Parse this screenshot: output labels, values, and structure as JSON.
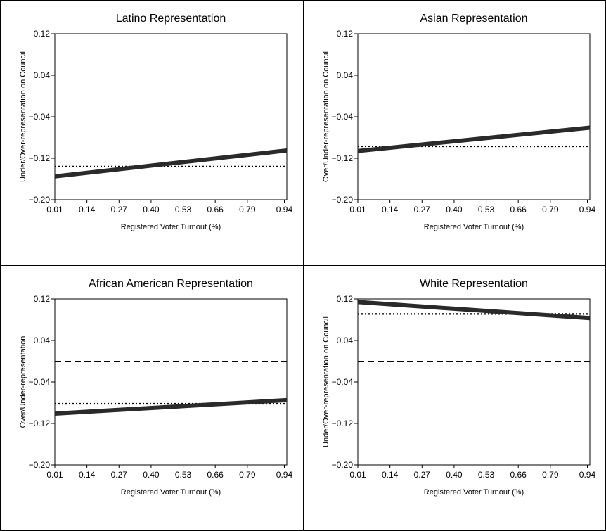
{
  "chart_data": [
    {
      "type": "line",
      "title": "Latino Representation",
      "xlabel": "Registered Voter Turnout (%)",
      "ylabel": "Under/Over-representation on Council",
      "xticks": [
        "0.01",
        "0.14",
        "0.27",
        "0.40",
        "0.53",
        "0.66",
        "0.79",
        "0.94"
      ],
      "yticks": [
        "0.12",
        "0.04",
        "−0.04",
        "−0.12",
        "−0.20"
      ],
      "xlim": [
        0.01,
        0.95
      ],
      "ylim": [
        -0.2,
        0.12
      ],
      "reference_zero": 0.0,
      "dotted_level": -0.136,
      "fitted_line": {
        "x": [
          0.01,
          0.95
        ],
        "y": [
          -0.155,
          -0.105
        ]
      }
    },
    {
      "type": "line",
      "title": "Asian Representation",
      "xlabel": "Registered Voter Turnout (%)",
      "ylabel": "Over/Under-representation on Council",
      "xticks": [
        "0.01",
        "0.14",
        "0.27",
        "0.40",
        "0.53",
        "0.66",
        "0.79",
        "0.94"
      ],
      "yticks": [
        "0.12",
        "0.04",
        "−0.04",
        "−0.12",
        "−0.20"
      ],
      "xlim": [
        0.01,
        0.95
      ],
      "ylim": [
        -0.2,
        0.12
      ],
      "reference_zero": 0.0,
      "dotted_level": -0.097,
      "fitted_line": {
        "x": [
          0.01,
          0.95
        ],
        "y": [
          -0.106,
          -0.061
        ]
      }
    },
    {
      "type": "line",
      "title": "African American Representation",
      "xlabel": "Registered Voter Turnout (%)",
      "ylabel": "Over/Under-representation",
      "xticks": [
        "0.01",
        "0.14",
        "0.27",
        "0.40",
        "0.53",
        "0.66",
        "0.79",
        "0.94"
      ],
      "yticks": [
        "0.12",
        "0.04",
        "−0.04",
        "−0.12",
        "−0.20"
      ],
      "xlim": [
        0.01,
        0.95
      ],
      "ylim": [
        -0.2,
        0.12
      ],
      "reference_zero": 0.0,
      "dotted_level": -0.082,
      "fitted_line": {
        "x": [
          0.01,
          0.95
        ],
        "y": [
          -0.101,
          -0.075
        ]
      }
    },
    {
      "type": "line",
      "title": "White Representation",
      "xlabel": "Registered Voter Turnout (%)",
      "ylabel": "Under/Over-representation on Council",
      "xticks": [
        "0.01",
        "0.14",
        "0.27",
        "0.40",
        "0.53",
        "0.66",
        "0.79",
        "0.94"
      ],
      "yticks": [
        "0.12",
        "0.04",
        "−0.04",
        "−0.12",
        "−0.20"
      ],
      "xlim": [
        0.01,
        0.95
      ],
      "ylim": [
        -0.2,
        0.12
      ],
      "reference_zero": 0.0,
      "dotted_level": 0.091,
      "fitted_line": {
        "x": [
          0.01,
          0.95
        ],
        "y": [
          0.114,
          0.083
        ]
      }
    }
  ]
}
